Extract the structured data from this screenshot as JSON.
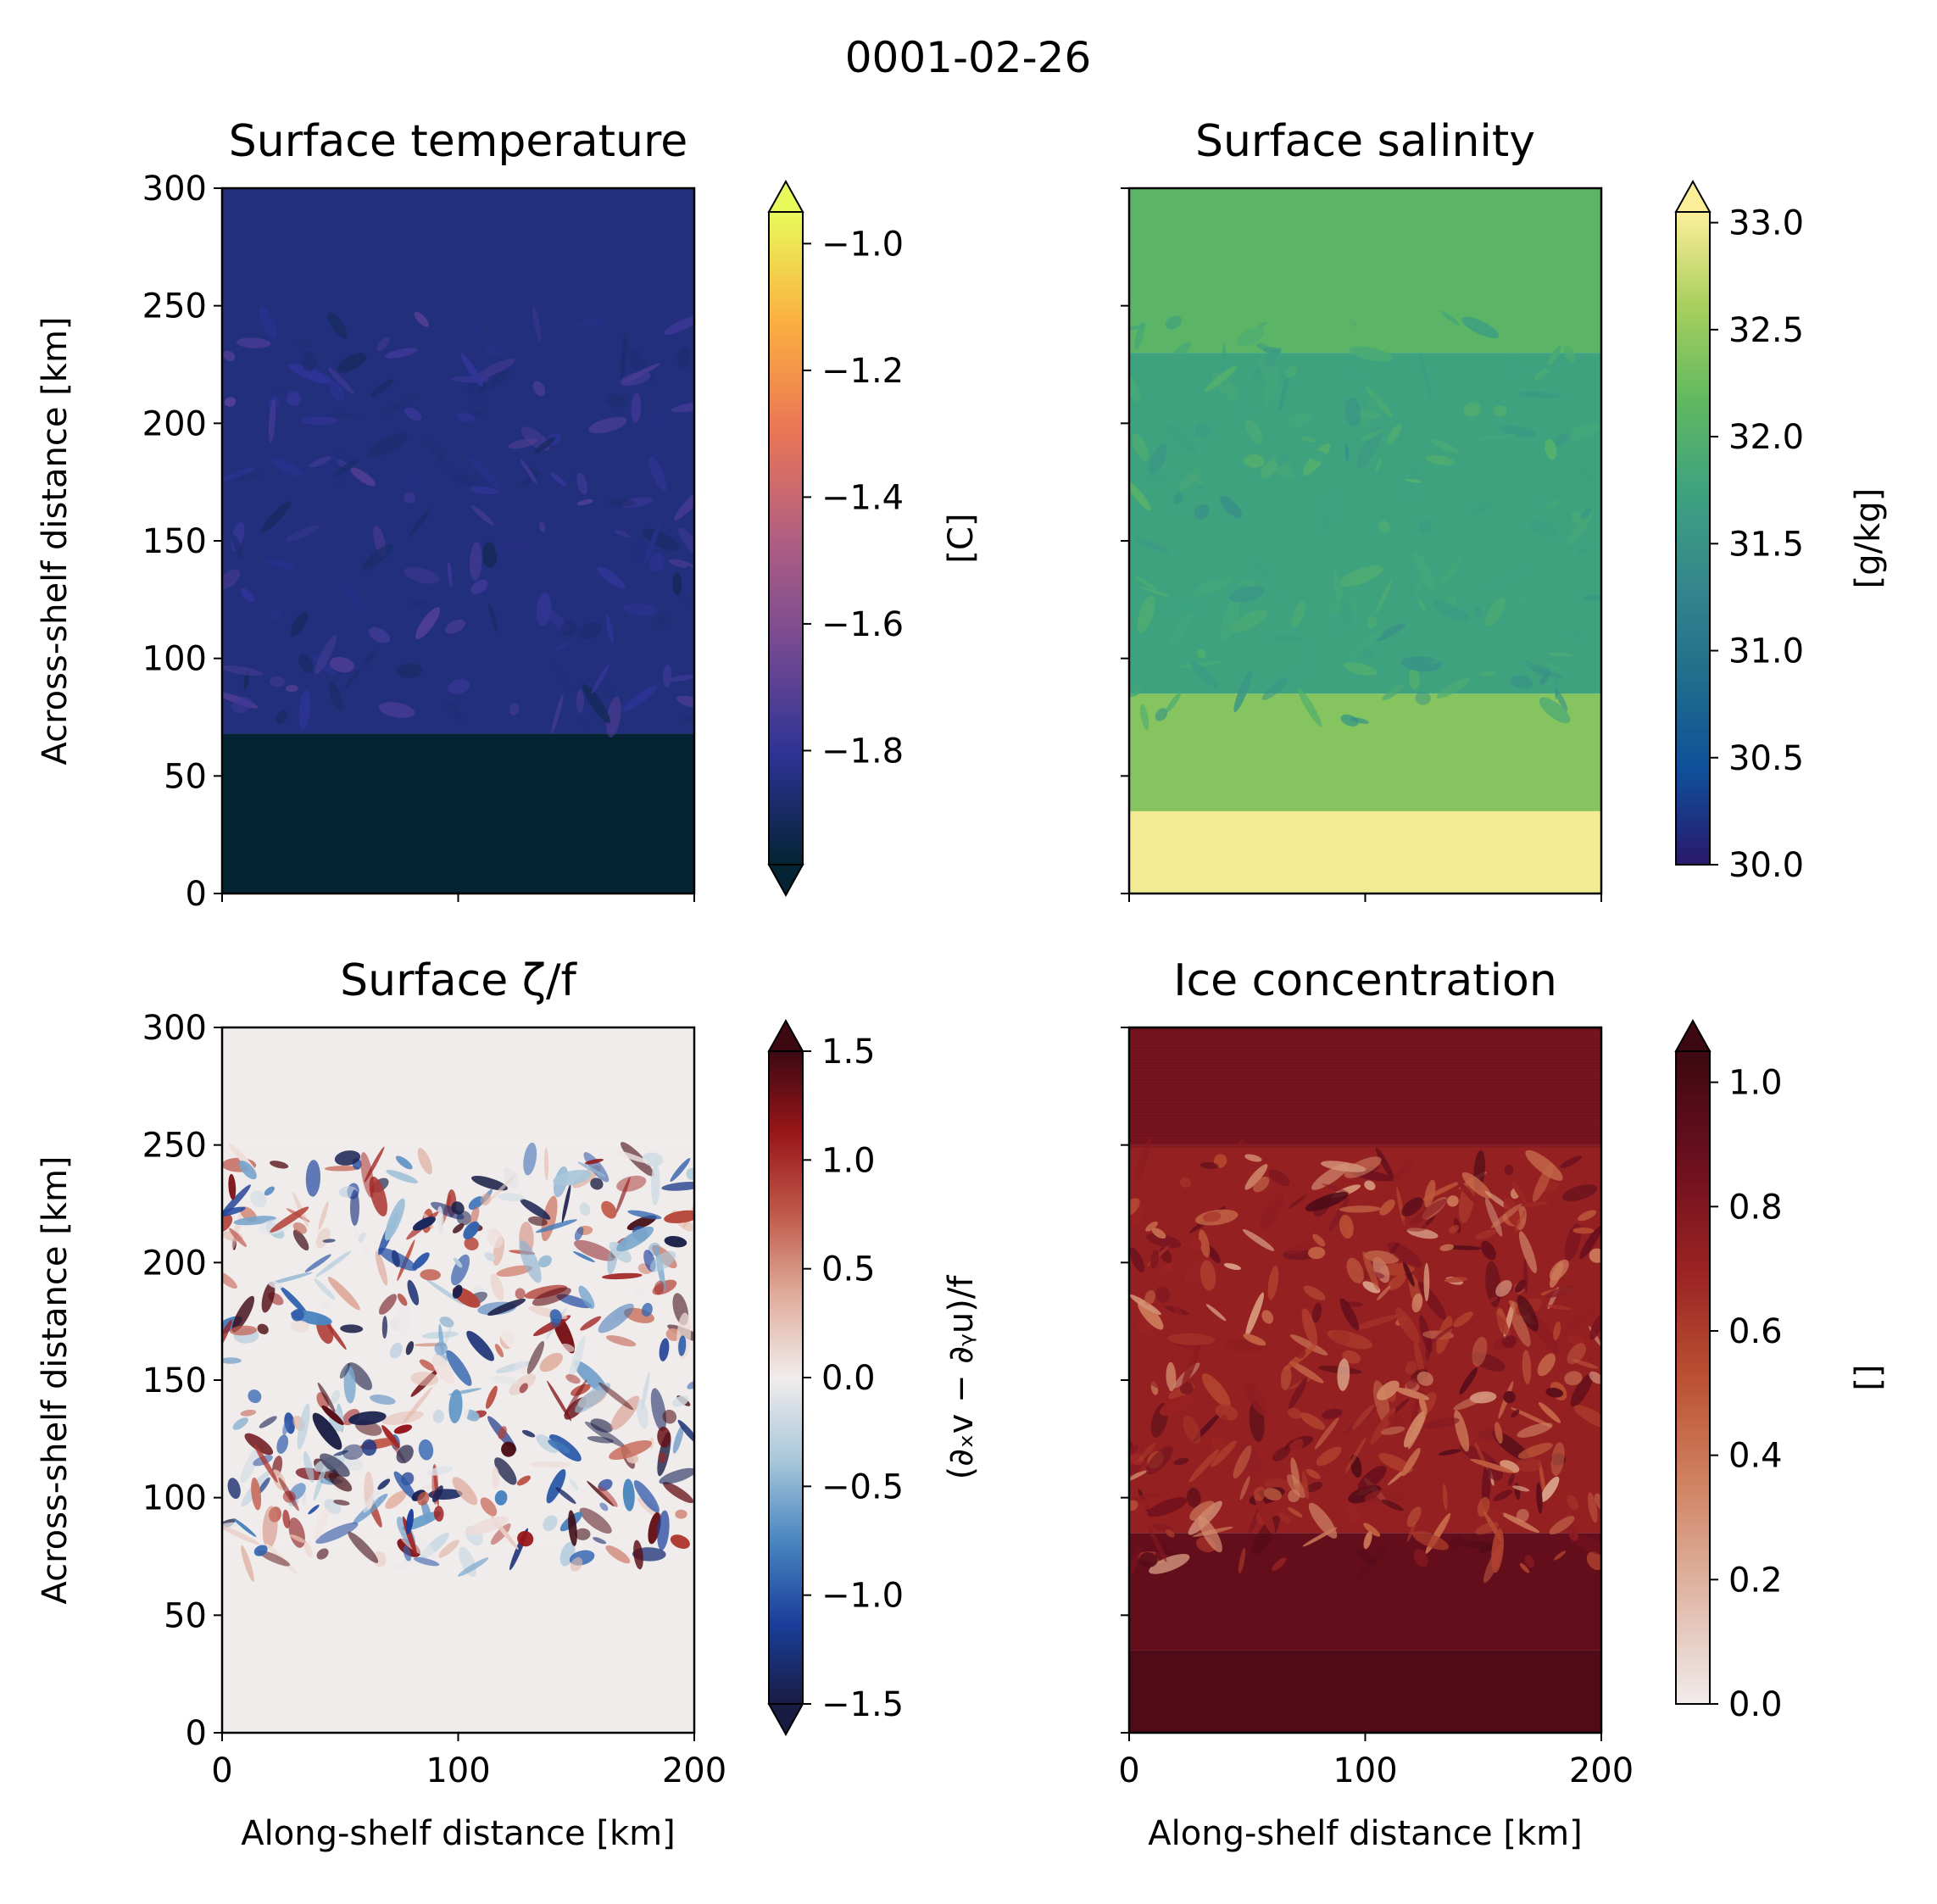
{
  "suptitle": "0001-02-26",
  "colors": {
    "thermal": [
      "#042333",
      "#2c3395",
      "#744992",
      "#b15f82",
      "#eb7655",
      "#fbb040",
      "#e8fa5b"
    ],
    "haline": [
      "#2a186c",
      "#0f4f9a",
      "#1f6e8c",
      "#34878c",
      "#3ea27f",
      "#62b960",
      "#a9cf5e",
      "#fdef9a"
    ],
    "balance": [
      "#181c43",
      "#1b3f9c",
      "#4a86c0",
      "#a9c8da",
      "#f1ecec",
      "#e0ad9c",
      "#c05a4a",
      "#991619",
      "#3c0912"
    ],
    "amp": [
      "#f1ecec",
      "#e0b8a8",
      "#d08463",
      "#bb5033",
      "#9a2223",
      "#6b0f1e",
      "#3c0912"
    ]
  },
  "chart_data": [
    {
      "type": "heatmap",
      "title": "Surface temperature",
      "xlabel": "",
      "ylabel": "Across-shelf distance [km]",
      "xlim": [
        0,
        200
      ],
      "ylim": [
        0,
        300
      ],
      "xticks": [
        "",
        "",
        ""
      ],
      "yticks": [
        "0",
        "50",
        "100",
        "150",
        "200",
        "250",
        "300"
      ],
      "colorbar": {
        "label": "[C]",
        "range": [
          -1.98,
          -0.95
        ],
        "ticks": [
          -1.8,
          -1.6,
          -1.4,
          -1.2,
          -1.0
        ],
        "tick_labels": [
          "−1.8",
          "−1.6",
          "−1.4",
          "−1.2",
          "−1.0"
        ],
        "extend": "both",
        "cmap": "thermal"
      },
      "regions": [
        {
          "from_y": 0,
          "to_y": 68,
          "value": -1.98
        },
        {
          "from_y": 68,
          "to_y": 300,
          "value": -1.85
        }
      ]
    },
    {
      "type": "heatmap",
      "title": "Surface salinity",
      "xlabel": "",
      "ylabel": "",
      "xlim": [
        0,
        200
      ],
      "ylim": [
        0,
        300
      ],
      "xticks": [
        "",
        "",
        ""
      ],
      "yticks": [
        "",
        "",
        "",
        "",
        "",
        "",
        ""
      ],
      "colorbar": {
        "label": "[g/kg]",
        "range": [
          30.0,
          33.05
        ],
        "ticks": [
          30.0,
          30.5,
          31.0,
          31.5,
          32.0,
          32.5,
          33.0
        ],
        "tick_labels": [
          "30.0",
          "30.5",
          "31.0",
          "31.5",
          "32.0",
          "32.5",
          "33.0"
        ],
        "extend": "max",
        "cmap": "haline"
      },
      "regions": [
        {
          "from_y": 0,
          "to_y": 35,
          "value": 33.0
        },
        {
          "from_y": 35,
          "to_y": 85,
          "value": 32.4
        },
        {
          "from_y": 85,
          "to_y": 230,
          "value": 31.75
        },
        {
          "from_y": 230,
          "to_y": 300,
          "value": 32.1
        }
      ]
    },
    {
      "type": "heatmap",
      "title": "Surface ζ/f",
      "xlabel": "Along-shelf distance [km]",
      "ylabel": "Across-shelf distance [km]",
      "xlim": [
        0,
        200
      ],
      "ylim": [
        0,
        300
      ],
      "xticks": [
        "0",
        "100",
        "200"
      ],
      "yticks": [
        "0",
        "50",
        "100",
        "150",
        "200",
        "250",
        "300"
      ],
      "colorbar": {
        "label": "(∂ₓv − ∂ᵧu)/f",
        "range": [
          -1.5,
          1.5
        ],
        "ticks": [
          -1.5,
          -1.0,
          -0.5,
          0.0,
          0.5,
          1.0,
          1.5
        ],
        "tick_labels": [
          "−1.5",
          "−1.0",
          "−0.5",
          "0.0",
          "0.5",
          "1.0",
          "1.5"
        ],
        "extend": "both",
        "cmap": "balance"
      },
      "regions": [
        {
          "from_y": 0,
          "to_y": 80,
          "value": 0.0
        },
        {
          "from_y": 80,
          "to_y": 250,
          "value": 0.0
        },
        {
          "from_y": 250,
          "to_y": 300,
          "value": 0.0
        }
      ]
    },
    {
      "type": "heatmap",
      "title": "Ice concentration",
      "xlabel": "Along-shelf distance [km]",
      "ylabel": "",
      "xlim": [
        0,
        200
      ],
      "ylim": [
        0,
        300
      ],
      "xticks": [
        "0",
        "100",
        "200"
      ],
      "yticks": [
        "",
        "",
        "",
        "",
        "",
        "",
        ""
      ],
      "colorbar": {
        "label": "[]",
        "range": [
          0.0,
          1.05
        ],
        "ticks": [
          0.0,
          0.2,
          0.4,
          0.6,
          0.8,
          1.0
        ],
        "tick_labels": [
          "0.0",
          "0.2",
          "0.4",
          "0.6",
          "0.8",
          "1.0"
        ],
        "extend": "max",
        "cmap": "amp"
      },
      "regions": [
        {
          "from_y": 0,
          "to_y": 35,
          "value": 0.98
        },
        {
          "from_y": 35,
          "to_y": 85,
          "value": 0.9
        },
        {
          "from_y": 85,
          "to_y": 250,
          "value": 0.72
        },
        {
          "from_y": 250,
          "to_y": 300,
          "value": 0.88
        }
      ]
    }
  ]
}
